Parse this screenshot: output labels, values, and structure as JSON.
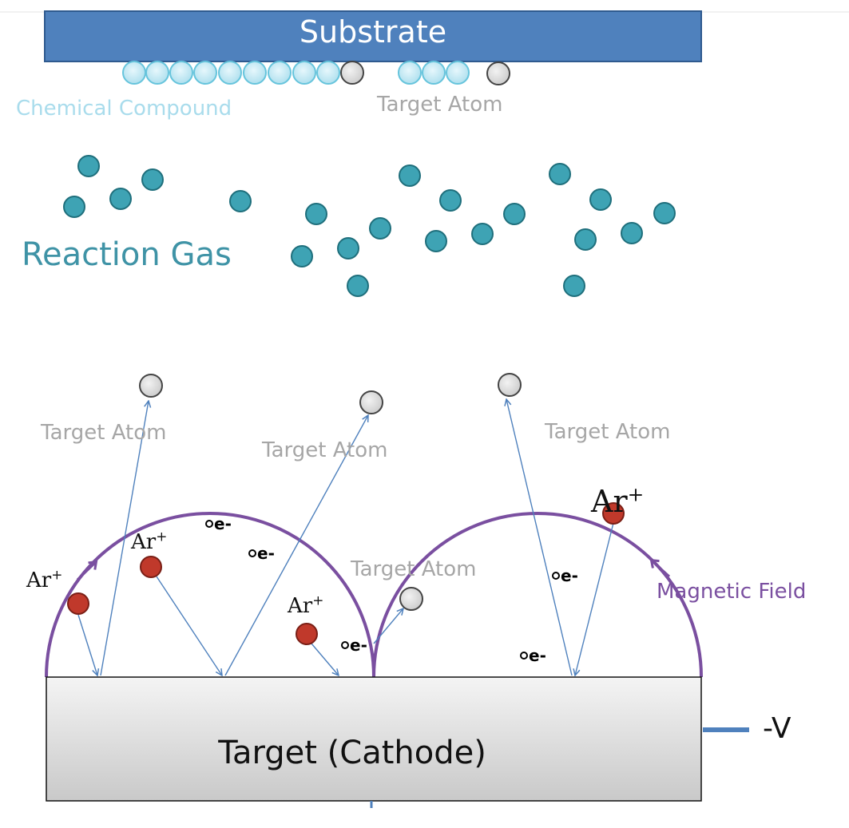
{
  "substrate": {
    "label": "Substrate"
  },
  "film_labels": {
    "compound": "Chemical Compound",
    "atom": "Target Atom"
  },
  "gas": {
    "label": "Reaction Gas"
  },
  "sputter_labels": {
    "atom_a": "Target Atom",
    "atom_b": "Target Atom",
    "atom_c": "Target Atom",
    "atom_d": "Target Atom"
  },
  "ions": {
    "ion_1": "Ar",
    "ion_2": "Ar",
    "ion_3": "Ar",
    "ion_4": "Ar",
    "charge": "+"
  },
  "electrons": {
    "label": "e-"
  },
  "field": {
    "label": "Magnetic Field"
  },
  "target": {
    "label": "Target (Cathode)"
  },
  "voltage": {
    "label": "-V"
  },
  "colors": {
    "substrate": "#4f81bd",
    "compound": "#a9e0f0",
    "gas": "#3ea3b4",
    "ion": "#c0392b",
    "field": "#7a4fa0",
    "arrow": "#4f81bd",
    "atom": "#d9d9d9"
  }
}
